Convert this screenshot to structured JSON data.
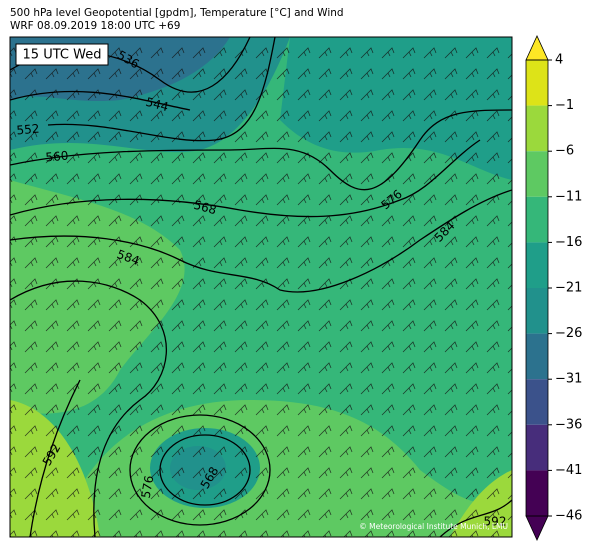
{
  "header": {
    "title": "500 hPa level Geopotential [gpdm], Temperature [°C] and Wind",
    "subtitle": "WRF 08.09.2019 18:00 UTC +69"
  },
  "map": {
    "time_label": "15 UTC Wed",
    "contour_labels": [
      536,
      544,
      552,
      560,
      568,
      576,
      584,
      584,
      592,
      568,
      576,
      592
    ],
    "credit": "© Meteorological Institute Munich, LMU"
  },
  "colorbar": {
    "ticks": [
      {
        "value": 4,
        "label": "4"
      },
      {
        "value": -1,
        "label": "−1"
      },
      {
        "value": -6,
        "label": "−6"
      },
      {
        "value": -11,
        "label": "−11"
      },
      {
        "value": -16,
        "label": "−16"
      },
      {
        "value": -21,
        "label": "−21"
      },
      {
        "value": -26,
        "label": "−26"
      },
      {
        "value": -31,
        "label": "−31"
      },
      {
        "value": -36,
        "label": "−36"
      },
      {
        "value": -41,
        "label": "−41"
      },
      {
        "value": -46,
        "label": "−46"
      }
    ],
    "colors": [
      "#dde318",
      "#9bd93c",
      "#5ec962",
      "#35b779",
      "#1f9e89",
      "#21918c",
      "#2c728e",
      "#3b528b",
      "#472d7b",
      "#440154"
    ],
    "extend_colors": [
      "#fde725",
      "#440154"
    ]
  }
}
